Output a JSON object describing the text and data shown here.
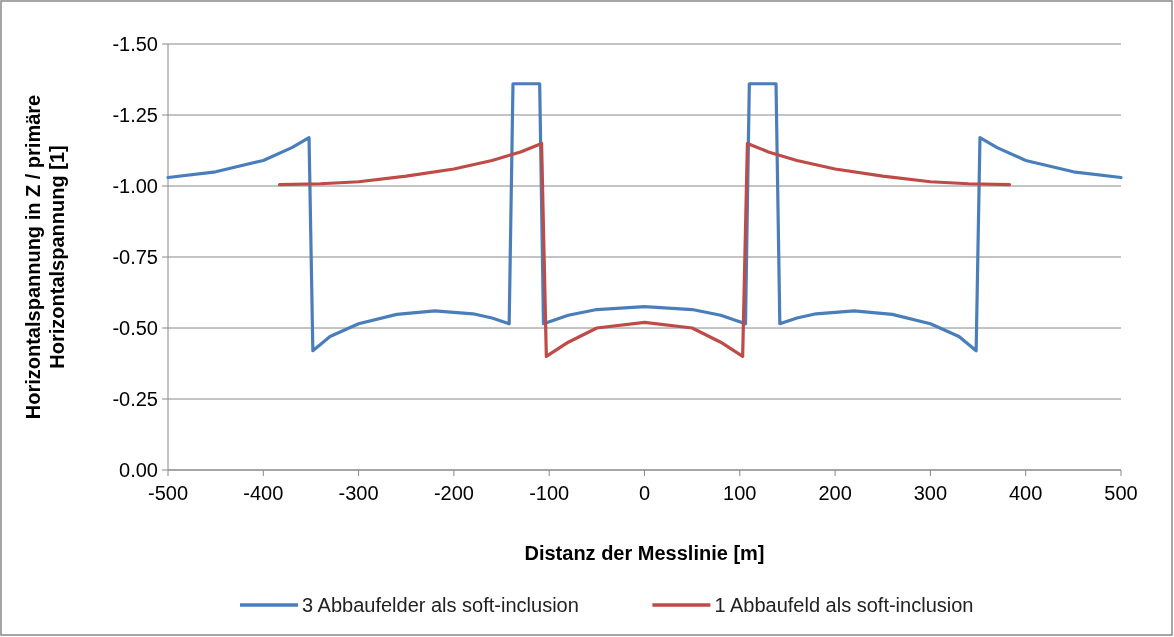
{
  "chart_data": {
    "type": "line",
    "xlabel": "Distanz der Messlinie  [m]",
    "ylabel": "Horizontalspannung in Z / primäre Horizontalspannung [1]",
    "xlim": [
      -500,
      500
    ],
    "xticks": [
      -500,
      -400,
      -300,
      -200,
      -100,
      0,
      100,
      200,
      300,
      400,
      500
    ],
    "ylim": [
      0,
      -1.5
    ],
    "yticks": [
      {
        "value": -1.5,
        "label": "-1.50"
      },
      {
        "value": -1.25,
        "label": "-1.25"
      },
      {
        "value": -1.0,
        "label": "-1.00"
      },
      {
        "value": -0.75,
        "label": "-0.75"
      },
      {
        "value": -0.5,
        "label": "-0.50"
      },
      {
        "value": -0.25,
        "label": "-0.25"
      },
      {
        "value": 0,
        "label": "0.00"
      }
    ],
    "grid": "y",
    "legend": "bottom",
    "line_style": "solid",
    "marker": "none",
    "series": [
      {
        "name": "3 Abbaufelder als soft-inclusion",
        "color": "#4a7ebb",
        "x": [
          -500,
          -450,
          -400,
          -370,
          -352,
          -348,
          -330,
          -300,
          -260,
          -220,
          -180,
          -160,
          -142,
          -138,
          -110,
          -106,
          -80,
          -50,
          0,
          50,
          80,
          106,
          110,
          138,
          142,
          160,
          180,
          220,
          260,
          300,
          330,
          348,
          352,
          370,
          400,
          450,
          500
        ],
        "values": [
          -1.03,
          -1.05,
          -1.09,
          -1.135,
          -1.17,
          -0.42,
          -0.47,
          -0.515,
          -0.548,
          -0.56,
          -0.55,
          -0.535,
          -0.515,
          -1.36,
          -1.36,
          -0.515,
          -0.545,
          -0.565,
          -0.575,
          -0.565,
          -0.545,
          -0.515,
          -1.36,
          -1.36,
          -0.515,
          -0.535,
          -0.55,
          -0.56,
          -0.548,
          -0.515,
          -0.47,
          -0.42,
          -1.17,
          -1.135,
          -1.09,
          -1.05,
          -1.03
        ]
      },
      {
        "name": "1 Abbaufeld als soft-inclusion",
        "color": "#be4b48",
        "x": [
          -383,
          -340,
          -300,
          -250,
          -200,
          -160,
          -130,
          -108,
          -103,
          -80,
          -50,
          0,
          50,
          80,
          103,
          108,
          130,
          160,
          200,
          250,
          300,
          340,
          383
        ],
        "values": [
          -1.005,
          -1.008,
          -1.015,
          -1.035,
          -1.06,
          -1.09,
          -1.12,
          -1.15,
          -0.4,
          -0.45,
          -0.5,
          -0.52,
          -0.5,
          -0.45,
          -0.4,
          -1.15,
          -1.12,
          -1.09,
          -1.06,
          -1.035,
          -1.015,
          -1.008,
          -1.005
        ]
      }
    ]
  }
}
